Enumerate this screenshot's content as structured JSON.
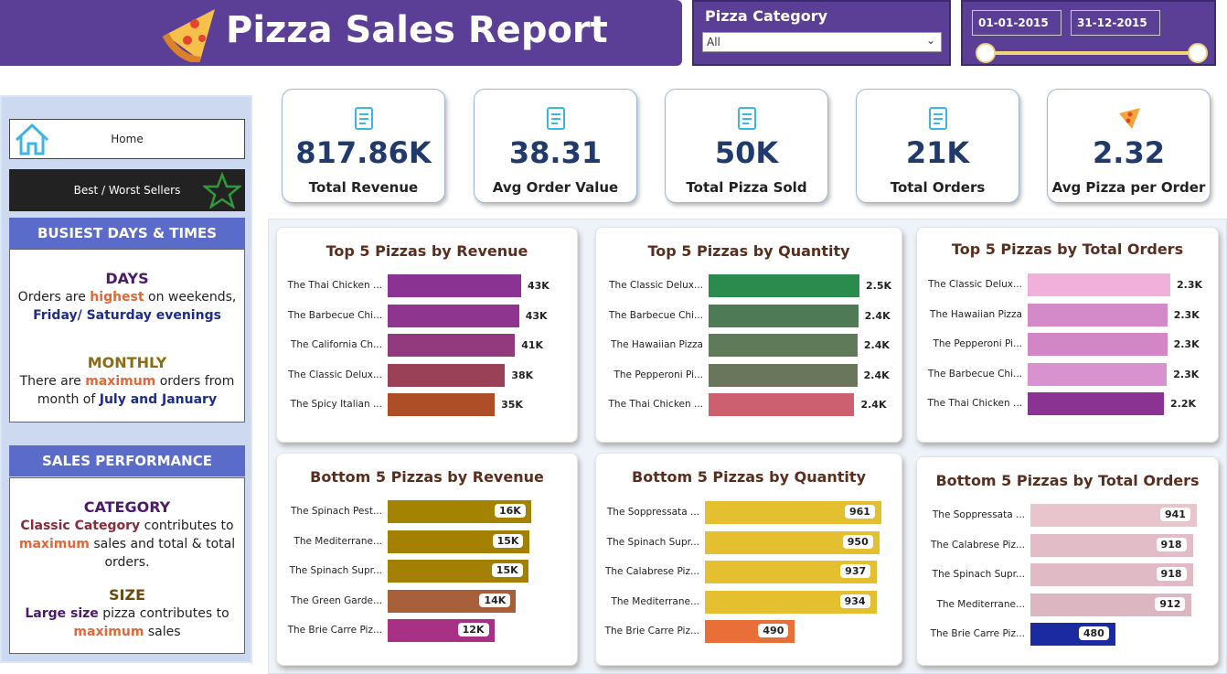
{
  "header": {
    "title": "Pizza Sales Report"
  },
  "filters": {
    "category_label": "Pizza Category",
    "category_value": "All",
    "date_start": "01-01-2015",
    "date_end": "31-12-2015"
  },
  "nav": [
    "Home",
    "Best / Worst Sellers"
  ],
  "insights": [
    {
      "heading": "BUSIEST DAYS & TIMES",
      "blocks": [
        {
          "title": "DAYS",
          "text": [
            "Orders are ",
            "highest",
            " on weekends,",
            "Friday/ Saturday evenings"
          ]
        },
        {
          "title": "MONTHLY",
          "text": [
            "There are ",
            "maximum",
            " orders from month of ",
            "July and January"
          ]
        }
      ]
    },
    {
      "heading": "SALES PERFORMANCE",
      "blocks": [
        {
          "title": "CATEGORY",
          "text": [
            "Classic Category",
            " contributes to ",
            "maximum",
            " sales and total & total orders."
          ]
        },
        {
          "title": "SIZE",
          "text": [
            "Large size",
            " pizza contributes to ",
            "maximum",
            " sales"
          ]
        }
      ]
    }
  ],
  "kpis": [
    {
      "value": "817.86K",
      "label": "Total Revenue"
    },
    {
      "value": "38.31",
      "label": "Avg Order Value"
    },
    {
      "value": "50K",
      "label": "Total Pizza Sold"
    },
    {
      "value": "21K",
      "label": "Total Orders"
    },
    {
      "value": "2.32",
      "label": "Avg Pizza per Order"
    }
  ],
  "chart_data": [
    {
      "type": "bar",
      "orientation": "horizontal",
      "title": "Top 5 Pizzas by Revenue",
      "categories": [
        "The Thai Chicken ...",
        "The Barbecue Chi...",
        "The California Ch...",
        "The Classic Delux...",
        "The Spicy Italian ..."
      ],
      "values": [
        43434,
        42768,
        41410,
        38181,
        34831
      ],
      "value_labels": [
        "43K",
        "43K",
        "41K",
        "38K",
        "35K"
      ],
      "colors": [
        "#8a3393",
        "#8e3590",
        "#913a7e",
        "#9a4158",
        "#ad4e27"
      ]
    },
    {
      "type": "bar",
      "orientation": "horizontal",
      "title": "Top 5 Pizzas by Quantity",
      "categories": [
        "The Classic Delux...",
        "The Barbecue Chi...",
        "The Hawaiian Pizza",
        "The Pepperoni Pi...",
        "The Thai Chicken ..."
      ],
      "values": [
        2453,
        2432,
        2422,
        2418,
        2371
      ],
      "value_labels": [
        "2.5K",
        "2.4K",
        "2.4K",
        "2.4K",
        "2.4K"
      ],
      "colors": [
        "#2b8a4e",
        "#4e7a55",
        "#5f7a58",
        "#6a765c",
        "#cc6070"
      ]
    },
    {
      "type": "bar",
      "orientation": "horizontal",
      "title": "Top 5 Pizzas by Total Orders",
      "categories": [
        "The Classic Delux...",
        "The Hawaiian Pizza",
        "The Pepperoni Pi...",
        "The Barbecue Chi...",
        "The Thai Chicken ..."
      ],
      "values": [
        2329,
        2280,
        2278,
        2273,
        2225
      ],
      "value_labels": [
        "2.3K",
        "2.3K",
        "2.3K",
        "2.3K",
        "2.2K"
      ],
      "colors": [
        "#f0b0da",
        "#d48ac8",
        "#d286c6",
        "#d892cf",
        "#8a3393"
      ]
    },
    {
      "type": "bar",
      "orientation": "horizontal",
      "title": "Bottom 5 Pizzas by Revenue",
      "categories": [
        "The Spinach Pest...",
        "The Mediterrane...",
        "The Spinach Supr...",
        "The Green Garde...",
        "The Brie Carre Piz..."
      ],
      "values": [
        15596,
        15361,
        15278,
        13956,
        11589
      ],
      "value_labels": [
        "16K",
        "15K",
        "15K",
        "14K",
        "12K"
      ],
      "colors": [
        "#a38300",
        "#a38000",
        "#a38004",
        "#a8603a",
        "#a83085"
      ]
    },
    {
      "type": "bar",
      "orientation": "horizontal",
      "title": "Bottom 5 Pizzas by Quantity",
      "categories": [
        "The Soppressata ...",
        "The Spinach Supr...",
        "The Calabrese Piz...",
        "The Mediterrane...",
        "The Brie Carre Piz..."
      ],
      "values": [
        961,
        950,
        937,
        934,
        490
      ],
      "colors": [
        "#e4c030",
        "#e4c030",
        "#e4c030",
        "#e4c030",
        "#e87038"
      ]
    },
    {
      "type": "bar",
      "orientation": "horizontal",
      "title": "Bottom 5 Pizzas by Total Orders",
      "categories": [
        "The Soppressata ...",
        "The Calabrese Piz...",
        "The Spinach Supr...",
        "The Mediterrane...",
        "The Brie Carre Piz..."
      ],
      "values": [
        941,
        918,
        918,
        912,
        480
      ],
      "colors": [
        "#e8c4cc",
        "#e2bcc6",
        "#e0bac4",
        "#dcb6c0",
        "#1a2aa0"
      ]
    }
  ]
}
